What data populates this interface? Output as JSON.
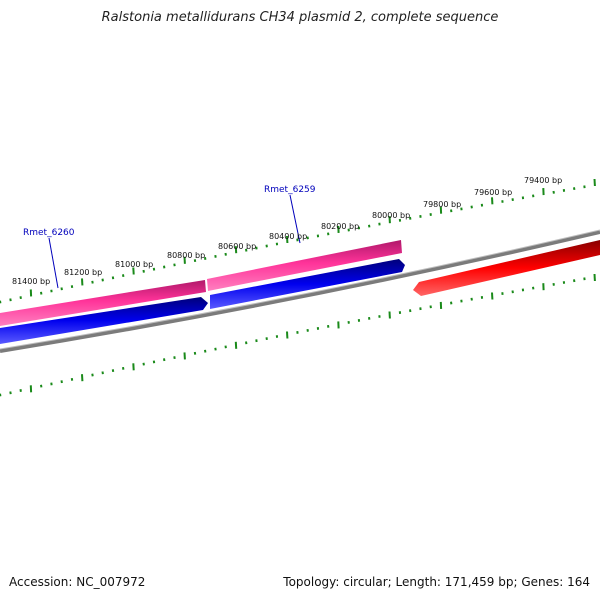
{
  "title": "Ralstonia metallidurans CH34 plasmid 2, complete sequence",
  "footer": {
    "accession": "Accession: NC_007972",
    "summary": "Topology: circular; Length: 171,459 bp; Genes: 164"
  },
  "colors": {
    "tick": "#1a8a1a",
    "backbone": "#808080",
    "forward_gene": "#ff3399",
    "reverse_gene": "#1a1aee",
    "other_gene": "#ee1111",
    "label": "#0000bb"
  },
  "scale_labels": [
    "81400 bp",
    "81200 bp",
    "81000 bp",
    "80800 bp",
    "80600 bp",
    "80400 bp",
    "80200 bp",
    "80000 bp",
    "79800 bp",
    "79600 bp",
    "79400 bp"
  ],
  "gene_labels": [
    {
      "name": "Rmet_6260"
    },
    {
      "name": "Rmet_6259"
    }
  ]
}
